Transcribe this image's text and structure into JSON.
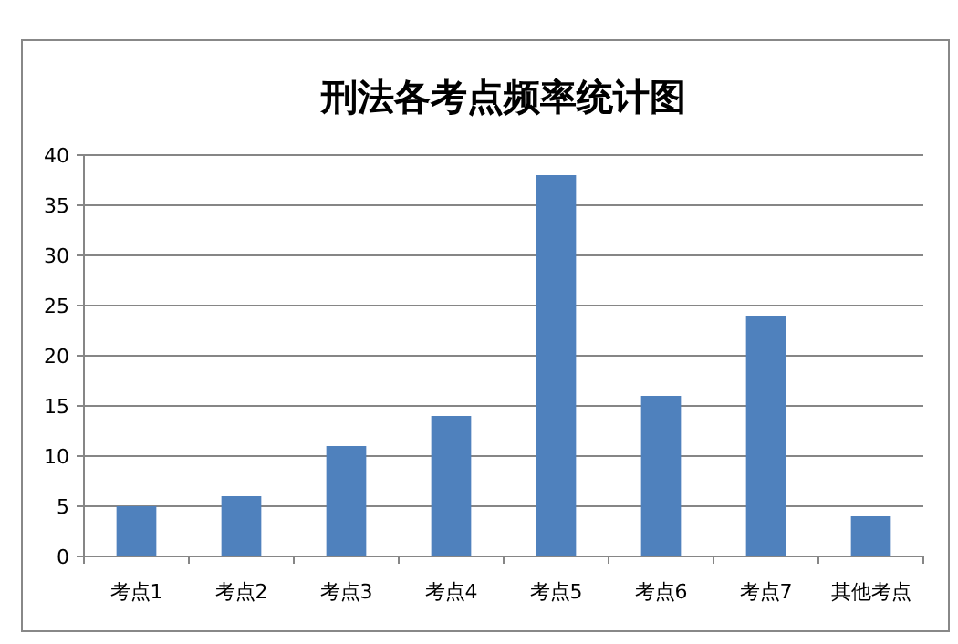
{
  "chart_data": {
    "type": "bar",
    "title": "刑法各考点频率统计图",
    "categories": [
      "考点1",
      "考点2",
      "考点3",
      "考点4",
      "考点5",
      "考点6",
      "考点7",
      "其他考点"
    ],
    "values": [
      5,
      6,
      11,
      14,
      38,
      16,
      24,
      4
    ],
    "color": "#4f81bd",
    "ylim": [
      0,
      40
    ],
    "yticks": [
      0,
      5,
      10,
      15,
      20,
      25,
      30,
      35,
      40
    ],
    "grid": "y"
  }
}
